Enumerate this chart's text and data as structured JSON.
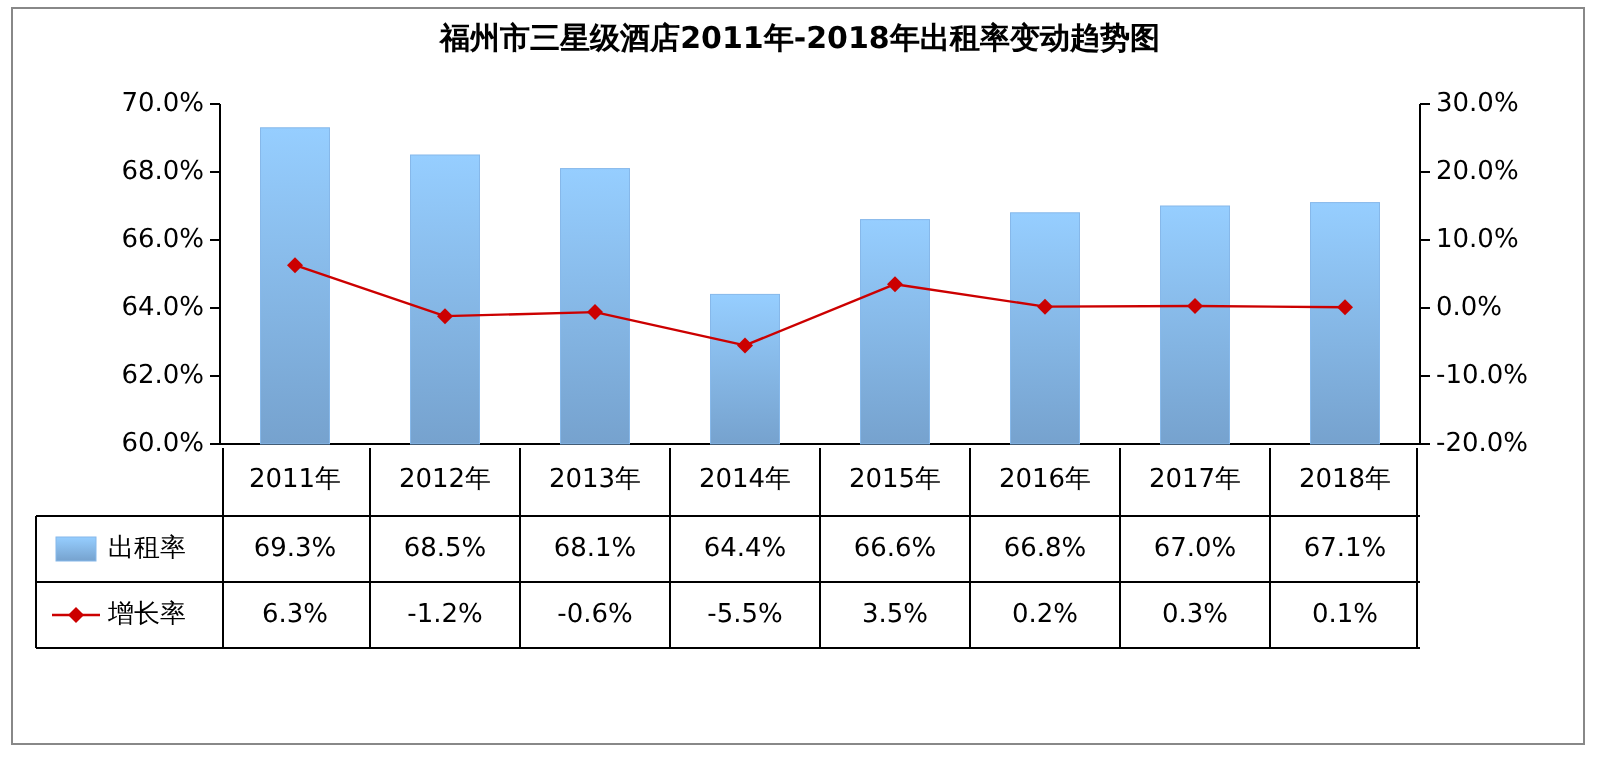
{
  "chart_data": {
    "type": "bar",
    "title": "福州市三星级酒店2011年-2018年出租率变动趋势图",
    "categories": [
      "2011年",
      "2012年",
      "2013年",
      "2014年",
      "2015年",
      "2016年",
      "2017年",
      "2018年"
    ],
    "series": [
      {
        "name": "出租率",
        "color": "#86b8ea",
        "values": [
          69.3,
          68.5,
          68.1,
          64.4,
          66.6,
          66.8,
          67.0,
          67.1
        ],
        "value_labels": [
          "69.3%",
          "68.5%",
          "68.1%",
          "64.4%",
          "66.6%",
          "66.8%",
          "67.0%",
          "67.1%"
        ]
      },
      {
        "name": "增长率",
        "type": "line",
        "axis": "y2",
        "color": "#cc0000",
        "marker": "diamond",
        "values": [
          6.3,
          -1.2,
          -0.6,
          -5.5,
          3.5,
          0.2,
          0.3,
          0.1
        ],
        "value_labels": [
          "6.3%",
          "-1.2%",
          "-0.6%",
          "-5.5%",
          "3.5%",
          "0.2%",
          "0.3%",
          "0.1%"
        ]
      }
    ],
    "ylim": [
      60,
      70
    ],
    "yticks": [
      {
        "value": 60,
        "label": "60.0%"
      },
      {
        "value": 62,
        "label": "62.0%"
      },
      {
        "value": 64,
        "label": "64.0%"
      },
      {
        "value": 66,
        "label": "66.0%"
      },
      {
        "value": 68,
        "label": "68.0%"
      },
      {
        "value": 70,
        "label": "70.0%"
      }
    ],
    "y2lim": [
      -20,
      30
    ],
    "y2ticks": [
      {
        "value": -20,
        "label": "-20.0%"
      },
      {
        "value": -10,
        "label": "-10.0%"
      },
      {
        "value": 0,
        "label": "0.0%"
      },
      {
        "value": 10,
        "label": "10.0%"
      },
      {
        "value": 20,
        "label": "20.0%"
      },
      {
        "value": 30,
        "label": "30.0%"
      }
    ],
    "legend": "bottom"
  }
}
